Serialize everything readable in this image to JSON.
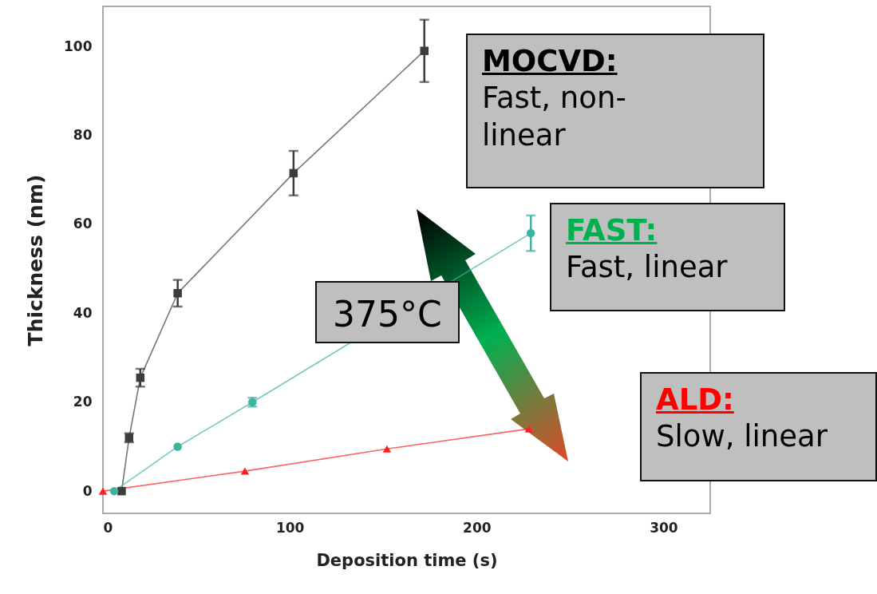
{
  "chart_data": {
    "type": "line",
    "xlabel": "Deposition time (s)",
    "ylabel": "Thickness (nm)",
    "xlim": [
      0,
      325
    ],
    "ylim": [
      -5,
      109
    ],
    "xticks": [
      0,
      100,
      200,
      300
    ],
    "yticks": [
      0,
      20,
      40,
      60,
      80,
      100
    ],
    "series": [
      {
        "color": "#3c3c3c",
        "marker": "square",
        "x": [
          10,
          14,
          20,
          40,
          102,
          172
        ],
        "values": [
          0,
          12,
          25.5,
          44.5,
          71.5,
          99
        ],
        "errors": [
          null,
          1,
          2,
          3,
          5,
          7
        ]
      },
      {
        "color": "#3cb4a0",
        "marker": "circle",
        "x": [
          6,
          40,
          80,
          229
        ],
        "values": [
          0,
          10,
          20,
          58
        ],
        "errors": [
          null,
          null,
          1,
          4
        ]
      },
      {
        "color": "#ff2020",
        "marker": "triangle",
        "x": [
          0,
          76,
          152,
          228
        ],
        "values": [
          0,
          4.5,
          9.5,
          14
        ]
      }
    ],
    "annotations": [
      "MOCVD:",
      "Fast, non-linear",
      "FAST:",
      "Fast, linear",
      "ALD:",
      "Slow, linear",
      "375°C"
    ]
  }
}
